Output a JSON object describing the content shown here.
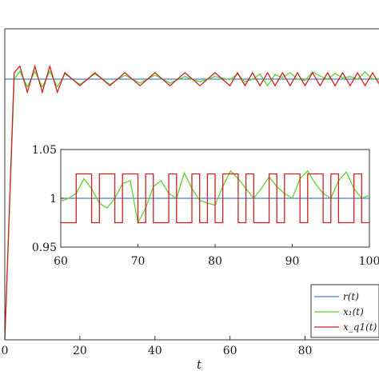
{
  "chart_data": [
    {
      "type": "line",
      "xlabel": "t",
      "xlim": [
        0,
        100
      ],
      "xticks": [
        "0",
        "20",
        "40",
        "60",
        "80"
      ],
      "grid": false,
      "legend_position": "bottom-right",
      "series": [
        {
          "name": "r(t)",
          "color": "#4a7fd1",
          "x": [
            0,
            100
          ],
          "y": [
            1,
            1
          ]
        },
        {
          "name": "x₁(t)",
          "color": "#5ed12f",
          "x": [
            0,
            2.5,
            4,
            6,
            8,
            10,
            12,
            14,
            16,
            20,
            24,
            28,
            32,
            36,
            40,
            44,
            48,
            52,
            56,
            60,
            62,
            64,
            66,
            68,
            70,
            72,
            74,
            76,
            78,
            80,
            82,
            84,
            86,
            88,
            90,
            92,
            94,
            96,
            98,
            100
          ],
          "y": [
            0,
            1.0,
            1.03,
            0.97,
            1.03,
            0.97,
            1.03,
            0.97,
            1.02,
            0.98,
            1.02,
            0.98,
            1.015,
            0.985,
            1.015,
            0.985,
            1.01,
            0.99,
            1.01,
            0.998,
            1.02,
            0.99,
            1.0,
            1.02,
            0.975,
            1.018,
            1.005,
            1.025,
            1.0,
            0.995,
            1.028,
            1.012,
            1.0,
            1.022,
            1.005,
            1.01,
            1.0,
            1.028,
            1.0,
            1.003
          ]
        },
        {
          "name": "x_q1(t)",
          "color": "#cc2222",
          "x": [
            0,
            2.5,
            4,
            6,
            8,
            10,
            12,
            14,
            16,
            20,
            24,
            28,
            32,
            36,
            40,
            44,
            48,
            52,
            56,
            60,
            62,
            64,
            66,
            68,
            70,
            72,
            74,
            76,
            78,
            80,
            82,
            84,
            86,
            88,
            90,
            92,
            94,
            96,
            98,
            100
          ],
          "y": [
            0,
            1.025,
            1.05,
            0.95,
            1.05,
            0.95,
            1.05,
            0.95,
            1.025,
            0.975,
            1.025,
            0.975,
            1.025,
            0.975,
            1.025,
            0.975,
            1.025,
            0.975,
            1.025,
            0.975,
            1.025,
            0.975,
            1.025,
            0.975,
            1.025,
            0.975,
            1.025,
            0.975,
            1.025,
            0.975,
            1.025,
            0.975,
            1.025,
            0.975,
            1.025,
            0.975,
            1.025,
            0.975,
            1.025,
            0.975
          ]
        }
      ]
    },
    {
      "type": "line",
      "inset": true,
      "xlim": [
        60,
        100
      ],
      "ylim": [
        0.95,
        1.05
      ],
      "xticks": [
        "60",
        "70",
        "80",
        "90",
        "100"
      ],
      "yticks": [
        "0.95",
        "1",
        "1.05"
      ],
      "series": [
        {
          "name": "r(t)",
          "color": "#4a7fd1",
          "x": [
            60,
            100
          ],
          "y": [
            1,
            1
          ]
        },
        {
          "name": "x₁(t)",
          "color": "#5ed12f",
          "x": [
            60,
            61,
            62,
            63,
            64,
            65,
            66,
            67,
            68,
            69,
            70,
            71,
            72,
            73,
            74,
            75,
            76,
            77,
            78,
            79,
            80,
            81,
            82,
            83,
            84,
            85,
            86,
            87,
            88,
            89,
            90,
            91,
            92,
            93,
            94,
            95,
            96,
            97,
            98,
            99,
            100
          ],
          "y": [
            0.997,
            1.0,
            1.005,
            1.02,
            1.01,
            0.995,
            0.99,
            1.0,
            1.015,
            1.018,
            0.975,
            0.99,
            1.012,
            1.018,
            1.005,
            1.0,
            1.026,
            1.01,
            0.998,
            0.995,
            0.993,
            1.012,
            1.028,
            1.02,
            1.01,
            1.0,
            1.01,
            1.022,
            1.012,
            1.005,
            1.0,
            1.02,
            1.028,
            1.015,
            1.005,
            1.0,
            1.018,
            1.027,
            1.01,
            1.0,
            1.003
          ]
        },
        {
          "name": "x_q1(t)",
          "color": "#cc2222",
          "x": [
            60,
            62,
            62,
            64,
            64,
            65,
            65,
            67,
            67,
            68,
            68,
            70,
            70,
            71,
            71,
            72,
            72,
            74,
            74,
            75,
            75,
            77,
            77,
            78,
            78,
            79,
            79,
            80,
            80,
            81,
            81,
            83,
            83,
            84,
            84,
            85,
            85,
            87,
            87,
            88,
            88,
            89,
            89,
            91,
            91,
            92,
            92,
            94,
            94,
            95,
            95,
            96,
            96,
            98,
            98,
            99,
            99,
            100
          ],
          "y": [
            0.975,
            0.975,
            1.025,
            1.025,
            0.975,
            0.975,
            1.025,
            1.025,
            0.975,
            0.975,
            1.025,
            1.025,
            0.975,
            0.975,
            1.025,
            1.025,
            0.975,
            0.975,
            1.025,
            1.025,
            0.975,
            0.975,
            1.025,
            1.025,
            0.975,
            0.975,
            1.025,
            1.025,
            0.975,
            0.975,
            1.025,
            1.025,
            0.975,
            0.975,
            1.025,
            1.025,
            0.975,
            0.975,
            1.025,
            1.025,
            0.975,
            0.975,
            1.025,
            1.025,
            0.975,
            0.975,
            1.025,
            1.025,
            0.975,
            0.975,
            1.025,
            1.025,
            0.975,
            0.975,
            1.025,
            1.025,
            0.975,
            0.975
          ]
        }
      ]
    }
  ]
}
